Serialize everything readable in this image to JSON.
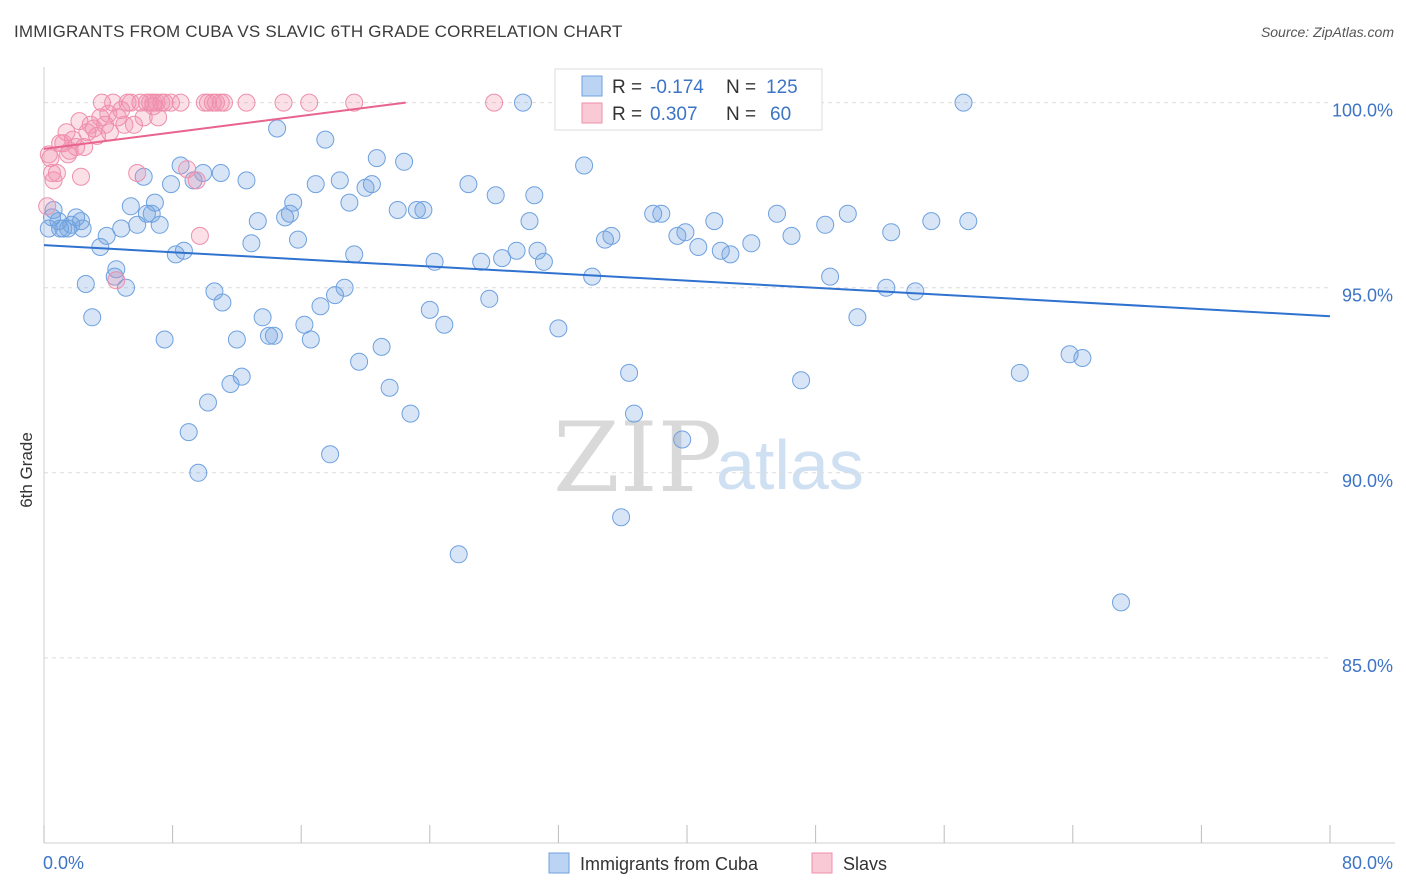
{
  "title": "IMMIGRANTS FROM CUBA VS SLAVIC 6TH GRADE CORRELATION CHART",
  "source": "Source: ZipAtlas.com",
  "watermark": {
    "zip": "ZIP",
    "atlas": "atlas"
  },
  "chart_data": {
    "type": "scatter",
    "ylabel": "6th Grade",
    "xlim": [
      0,
      80
    ],
    "ylim": [
      80.0,
      100.8
    ],
    "x_tick_labels": {
      "left": "0.0%",
      "right": "80.0%"
    },
    "y_ticks": [
      {
        "value": 100.0,
        "label": "100.0%"
      },
      {
        "value": 95.0,
        "label": "95.0%"
      },
      {
        "value": 90.0,
        "label": "90.0%"
      },
      {
        "value": 85.0,
        "label": "85.0%"
      }
    ],
    "colors": {
      "cuba": "#6fa1df",
      "cuba_line": "#2f72cf",
      "slavs": "#ef8fac",
      "slavs_line": "#e8638d"
    },
    "stats": [
      {
        "series": "Immigrants from Cuba",
        "r_label": "R =",
        "r": "-0.174",
        "n_label": "N =",
        "n": "125"
      },
      {
        "series": "Slavs",
        "r_label": "R =",
        "r": "0.307",
        "n_label": "N =",
        "n": "60"
      }
    ],
    "legend": [
      "Immigrants from Cuba",
      "Slavs"
    ],
    "series": [
      {
        "name": "Immigrants from Cuba",
        "trend": {
          "x": [
            0,
            80
          ],
          "y": [
            96.15,
            94.23
          ]
        },
        "points": [
          [
            0.3,
            96.6
          ],
          [
            0.5,
            96.9
          ],
          [
            0.6,
            97.1
          ],
          [
            0.9,
            96.8
          ],
          [
            1.2,
            96.6
          ],
          [
            1.5,
            96.6
          ],
          [
            1.7,
            96.7
          ],
          [
            2.0,
            96.9
          ],
          [
            2.3,
            96.8
          ],
          [
            2.6,
            95.1
          ],
          [
            3.0,
            94.2
          ],
          [
            3.5,
            96.1
          ],
          [
            3.9,
            96.4
          ],
          [
            4.4,
            95.3
          ],
          [
            4.5,
            95.5
          ],
          [
            4.8,
            96.6
          ],
          [
            5.1,
            95.0
          ],
          [
            5.4,
            97.2
          ],
          [
            5.8,
            96.7
          ],
          [
            6.2,
            98.0
          ],
          [
            6.4,
            97.0
          ],
          [
            6.7,
            97.0
          ],
          [
            6.9,
            97.3
          ],
          [
            7.2,
            96.7
          ],
          [
            7.5,
            93.6
          ],
          [
            7.9,
            97.8
          ],
          [
            8.2,
            95.9
          ],
          [
            8.5,
            98.3
          ],
          [
            8.7,
            96.0
          ],
          [
            9.0,
            91.1
          ],
          [
            9.3,
            97.9
          ],
          [
            9.6,
            90.0
          ],
          [
            9.9,
            98.1
          ],
          [
            10.2,
            91.9
          ],
          [
            10.6,
            94.9
          ],
          [
            11.0,
            98.1
          ],
          [
            11.1,
            94.6
          ],
          [
            11.6,
            92.4
          ],
          [
            12.0,
            93.6
          ],
          [
            12.3,
            92.6
          ],
          [
            12.6,
            97.9
          ],
          [
            12.9,
            96.2
          ],
          [
            13.3,
            96.8
          ],
          [
            13.6,
            94.2
          ],
          [
            14.0,
            93.7
          ],
          [
            14.3,
            93.7
          ],
          [
            14.5,
            99.3
          ],
          [
            15.0,
            96.9
          ],
          [
            15.3,
            97.0
          ],
          [
            15.5,
            97.3
          ],
          [
            15.8,
            96.3
          ],
          [
            16.2,
            94.0
          ],
          [
            16.6,
            93.6
          ],
          [
            16.9,
            97.8
          ],
          [
            17.2,
            94.5
          ],
          [
            17.5,
            99.0
          ],
          [
            17.8,
            90.5
          ],
          [
            18.1,
            94.8
          ],
          [
            18.4,
            97.9
          ],
          [
            18.7,
            95.0
          ],
          [
            19.0,
            97.3
          ],
          [
            19.3,
            95.9
          ],
          [
            19.6,
            93.0
          ],
          [
            20.0,
            97.7
          ],
          [
            20.4,
            97.8
          ],
          [
            20.7,
            98.5
          ],
          [
            21.0,
            93.4
          ],
          [
            21.5,
            92.3
          ],
          [
            22.0,
            97.1
          ],
          [
            22.4,
            98.4
          ],
          [
            22.8,
            91.6
          ],
          [
            23.2,
            97.1
          ],
          [
            23.6,
            97.1
          ],
          [
            24.0,
            94.4
          ],
          [
            24.3,
            95.7
          ],
          [
            24.9,
            94.0
          ],
          [
            25.8,
            87.8
          ],
          [
            26.4,
            97.8
          ],
          [
            27.2,
            95.7
          ],
          [
            27.7,
            94.7
          ],
          [
            28.1,
            97.5
          ],
          [
            28.5,
            95.8
          ],
          [
            29.4,
            96.0
          ],
          [
            29.8,
            100.0
          ],
          [
            30.2,
            96.8
          ],
          [
            30.5,
            97.5
          ],
          [
            30.7,
            96.0
          ],
          [
            31.1,
            95.7
          ],
          [
            32.0,
            93.9
          ],
          [
            33.6,
            98.3
          ],
          [
            34.1,
            95.3
          ],
          [
            34.9,
            96.3
          ],
          [
            35.3,
            96.4
          ],
          [
            35.9,
            88.8
          ],
          [
            36.4,
            92.7
          ],
          [
            36.7,
            91.6
          ],
          [
            37.9,
            97.0
          ],
          [
            38.4,
            97.0
          ],
          [
            39.4,
            96.4
          ],
          [
            39.7,
            90.9
          ],
          [
            39.9,
            96.5
          ],
          [
            40.7,
            96.1
          ],
          [
            41.7,
            96.8
          ],
          [
            42.1,
            96.0
          ],
          [
            42.7,
            95.9
          ],
          [
            44.0,
            96.2
          ],
          [
            45.6,
            97.0
          ],
          [
            46.5,
            96.4
          ],
          [
            47.1,
            92.5
          ],
          [
            48.6,
            96.7
          ],
          [
            48.9,
            95.3
          ],
          [
            50.0,
            97.0
          ],
          [
            50.6,
            94.2
          ],
          [
            52.4,
            95.0
          ],
          [
            52.7,
            96.5
          ],
          [
            54.2,
            94.9
          ],
          [
            55.2,
            96.8
          ],
          [
            57.2,
            100.0
          ],
          [
            57.5,
            96.8
          ],
          [
            60.7,
            92.7
          ],
          [
            63.8,
            93.2
          ],
          [
            64.6,
            93.1
          ],
          [
            67.0,
            86.5
          ],
          [
            1.0,
            96.6
          ],
          [
            2.4,
            96.6
          ]
        ]
      },
      {
        "name": "Slavs",
        "trend": {
          "x": [
            0,
            22.5
          ],
          "y": [
            98.75,
            100.0
          ]
        },
        "points": [
          [
            0.2,
            97.2
          ],
          [
            0.4,
            98.5
          ],
          [
            0.5,
            98.1
          ],
          [
            0.6,
            97.9
          ],
          [
            0.8,
            98.1
          ],
          [
            1.0,
            98.9
          ],
          [
            1.2,
            98.9
          ],
          [
            1.4,
            99.2
          ],
          [
            1.6,
            98.7
          ],
          [
            1.8,
            99.0
          ],
          [
            2.0,
            98.8
          ],
          [
            2.2,
            99.5
          ],
          [
            2.5,
            98.8
          ],
          [
            2.7,
            99.2
          ],
          [
            2.9,
            99.4
          ],
          [
            3.1,
            99.3
          ],
          [
            3.3,
            99.1
          ],
          [
            3.5,
            99.6
          ],
          [
            3.6,
            100.0
          ],
          [
            3.8,
            99.4
          ],
          [
            4.0,
            99.7
          ],
          [
            4.1,
            99.2
          ],
          [
            4.3,
            100.0
          ],
          [
            4.5,
            95.2
          ],
          [
            4.6,
            99.6
          ],
          [
            4.8,
            99.8
          ],
          [
            5.0,
            99.4
          ],
          [
            5.2,
            100.0
          ],
          [
            5.4,
            100.0
          ],
          [
            5.6,
            99.4
          ],
          [
            5.8,
            98.1
          ],
          [
            6.0,
            100.0
          ],
          [
            6.2,
            99.6
          ],
          [
            6.4,
            100.0
          ],
          [
            6.6,
            100.0
          ],
          [
            6.8,
            99.9
          ],
          [
            7.0,
            100.0
          ],
          [
            7.1,
            99.6
          ],
          [
            7.3,
            100.0
          ],
          [
            7.5,
            100.0
          ],
          [
            7.9,
            100.0
          ],
          [
            8.5,
            100.0
          ],
          [
            8.9,
            98.2
          ],
          [
            9.5,
            97.9
          ],
          [
            9.7,
            96.4
          ],
          [
            10.0,
            100.0
          ],
          [
            10.2,
            100.0
          ],
          [
            10.5,
            100.0
          ],
          [
            10.7,
            100.0
          ],
          [
            11.0,
            100.0
          ],
          [
            11.2,
            100.0
          ],
          [
            12.6,
            100.0
          ],
          [
            14.9,
            100.0
          ],
          [
            16.5,
            100.0
          ],
          [
            19.3,
            100.0
          ],
          [
            28.0,
            100.0
          ],
          [
            0.3,
            98.6
          ],
          [
            1.5,
            98.6
          ],
          [
            6.8,
            100.0
          ],
          [
            2.3,
            98.0
          ]
        ]
      }
    ]
  }
}
